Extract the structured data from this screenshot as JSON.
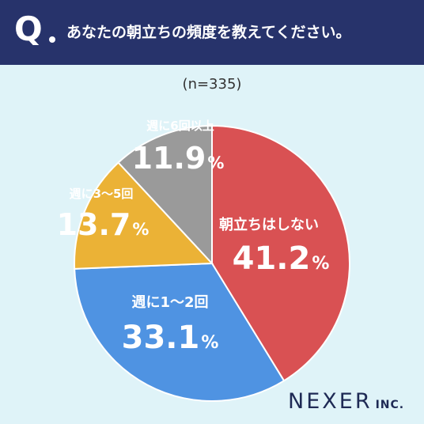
{
  "header": {
    "q_mark": "Q",
    "question": "あなたの朝立ちの頻度を教えてください。"
  },
  "sample_size": "(n=335)",
  "logo": {
    "main": "NEXER",
    "sub": "INC."
  },
  "colors": {
    "header_bg": "#27336b",
    "background": "#dff3f8",
    "none": "#d95153",
    "one_two": "#4f93e2",
    "three_five": "#ebb236",
    "six_plus": "#9a9a9a"
  },
  "chart_data": {
    "type": "pie",
    "title": "",
    "start": "top",
    "direction": "clockwise",
    "slices": [
      {
        "label": "朝立ちはしない",
        "value": 41.2,
        "value_text": "41.2",
        "unit": "%",
        "color": "#d95153"
      },
      {
        "label": "週に1〜2回",
        "value": 33.1,
        "value_text": "33.1",
        "unit": "%",
        "color": "#4f93e2"
      },
      {
        "label": "週に3〜5回",
        "value": 13.7,
        "value_text": "13.7",
        "unit": "%",
        "color": "#ebb236"
      },
      {
        "label": "週に6回以上",
        "value": 11.9,
        "value_text": "11.9",
        "unit": "%",
        "color": "#9a9a9a"
      }
    ]
  }
}
